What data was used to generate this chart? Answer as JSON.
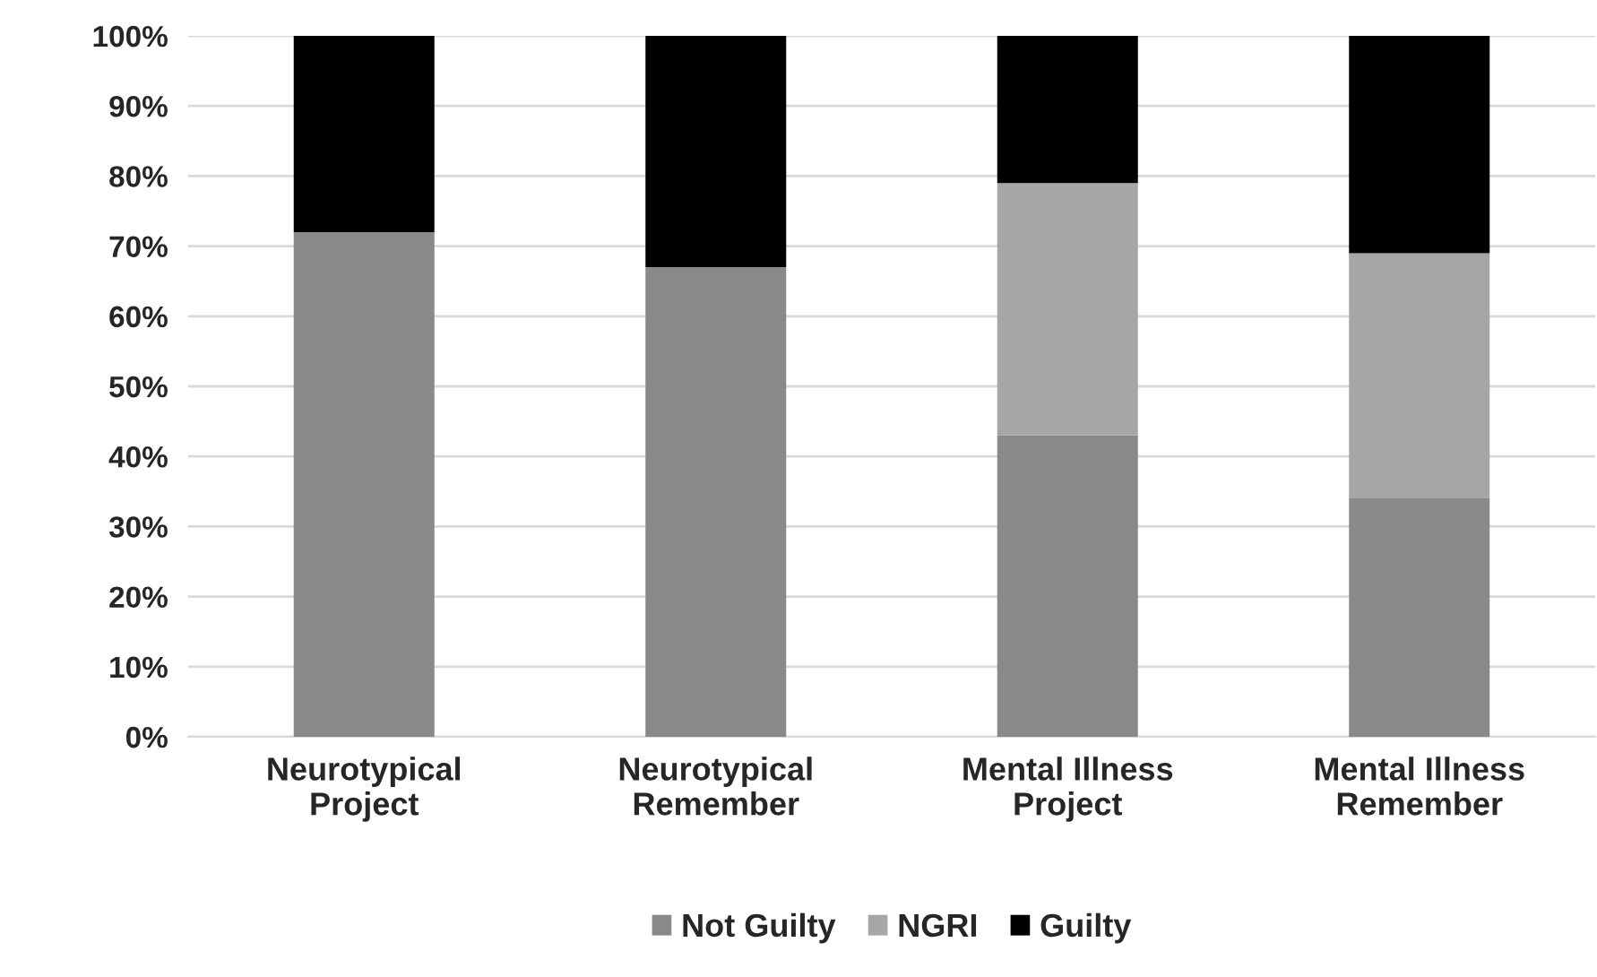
{
  "chart_data": {
    "type": "bar",
    "stacked": true,
    "categories": [
      "Neurotypical\nProject",
      "Neurotypical\nRemember",
      "Mental Illness\nProject",
      "Mental Illness\nRemember"
    ],
    "series": [
      {
        "name": "Not Guilty",
        "color": "#898989",
        "values": [
          72,
          67,
          43,
          34
        ]
      },
      {
        "name": "NGRI",
        "color": "#a6a6a6",
        "values": [
          0,
          0,
          36,
          35
        ]
      },
      {
        "name": "Guilty",
        "color": "#000000",
        "values": [
          28,
          33,
          21,
          31
        ]
      }
    ],
    "ylim": [
      0,
      100
    ],
    "yticks": [
      {
        "value": 0,
        "label": "0%"
      },
      {
        "value": 10,
        "label": "10%"
      },
      {
        "value": 20,
        "label": "20%"
      },
      {
        "value": 30,
        "label": "30%"
      },
      {
        "value": 40,
        "label": "40%"
      },
      {
        "value": 50,
        "label": "50%"
      },
      {
        "value": 60,
        "label": "60%"
      },
      {
        "value": 70,
        "label": "70%"
      },
      {
        "value": 80,
        "label": "80%"
      },
      {
        "value": 90,
        "label": "90%"
      },
      {
        "value": 100,
        "label": "100%"
      }
    ],
    "grid": "y",
    "legend": "bottom"
  }
}
